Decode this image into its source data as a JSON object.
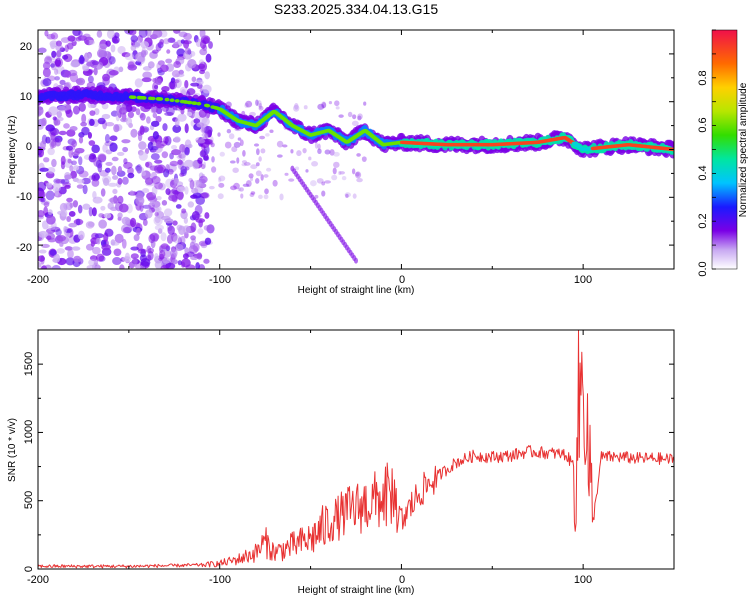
{
  "title": "S233.2025.334.04.13.G15",
  "chart_data": [
    {
      "type": "heatmap",
      "title": "S233.2025.334.04.13.G15",
      "xlabel": "Height of straight line (km)",
      "ylabel": "Frequency (Hz)",
      "xlim": [
        -200,
        150
      ],
      "ylim": [
        -25,
        25
      ],
      "xticks": [
        "-200",
        "-100",
        "0",
        "100"
      ],
      "yticks": [
        "-20",
        "-10",
        "0",
        "10",
        "20"
      ],
      "colorbar": {
        "label": "Normalized spectral amplitude",
        "range": [
          0,
          1
        ],
        "ticks": [
          "0.0",
          "0.2",
          "0.4",
          "0.6",
          "0.8"
        ]
      },
      "ridge": [
        {
          "x": -200,
          "y": 11
        },
        {
          "x": -175,
          "y": 11.5
        },
        {
          "x": -150,
          "y": 11
        },
        {
          "x": -130,
          "y": 10.5
        },
        {
          "x": -110,
          "y": 9.5
        },
        {
          "x": -100,
          "y": 8.5
        },
        {
          "x": -90,
          "y": 6
        },
        {
          "x": -80,
          "y": 5
        },
        {
          "x": -70,
          "y": 8
        },
        {
          "x": -60,
          "y": 5
        },
        {
          "x": -50,
          "y": 3
        },
        {
          "x": -40,
          "y": 4
        },
        {
          "x": -30,
          "y": 1.5
        },
        {
          "x": -20,
          "y": 4
        },
        {
          "x": -10,
          "y": 1
        },
        {
          "x": 0,
          "y": 1.5
        },
        {
          "x": 25,
          "y": 1
        },
        {
          "x": 50,
          "y": 1
        },
        {
          "x": 75,
          "y": 1.5
        },
        {
          "x": 90,
          "y": 2.5
        },
        {
          "x": 100,
          "y": 0
        },
        {
          "x": 125,
          "y": 1
        },
        {
          "x": 150,
          "y": 0
        }
      ]
    },
    {
      "type": "line",
      "xlabel": "Height of straight line (km)",
      "ylabel": "SNR (10 * v/v)",
      "xlim": [
        -200,
        150
      ],
      "ylim": [
        0,
        1750
      ],
      "xticks": [
        "-200",
        "-100",
        "0",
        "100"
      ],
      "yticks": [
        "0",
        "500",
        "1000",
        "1500"
      ],
      "color": "#e83232",
      "series": [
        {
          "name": "SNR",
          "x": [
            -200,
            -175,
            -150,
            -125,
            -110,
            -100,
            -90,
            -80,
            -75,
            -70,
            -60,
            -50,
            -40,
            -30,
            -20,
            -10,
            -5,
            0,
            10,
            20,
            30,
            40,
            50,
            60,
            70,
            80,
            90,
            95,
            100,
            105,
            110,
            120,
            130,
            140,
            150
          ],
          "values": [
            20,
            20,
            20,
            25,
            30,
            40,
            70,
            120,
            200,
            120,
            170,
            220,
            330,
            420,
            470,
            520,
            560,
            350,
            560,
            680,
            780,
            830,
            820,
            830,
            860,
            850,
            840,
            760,
            1500,
            300,
            820,
            820,
            810,
            810,
            800
          ]
        }
      ]
    }
  ]
}
